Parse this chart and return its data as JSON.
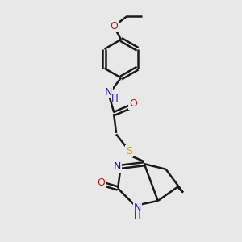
{
  "background_color": "#e8e8e8",
  "bond_color": "#1a1a1a",
  "N_color": "#1414cc",
  "O_color": "#cc1414",
  "S_color": "#ccaa00",
  "line_width": 1.8,
  "figsize": [
    3.0,
    3.0
  ],
  "dpi": 100,
  "xlim": [
    0,
    10
  ],
  "ylim": [
    0,
    10
  ]
}
